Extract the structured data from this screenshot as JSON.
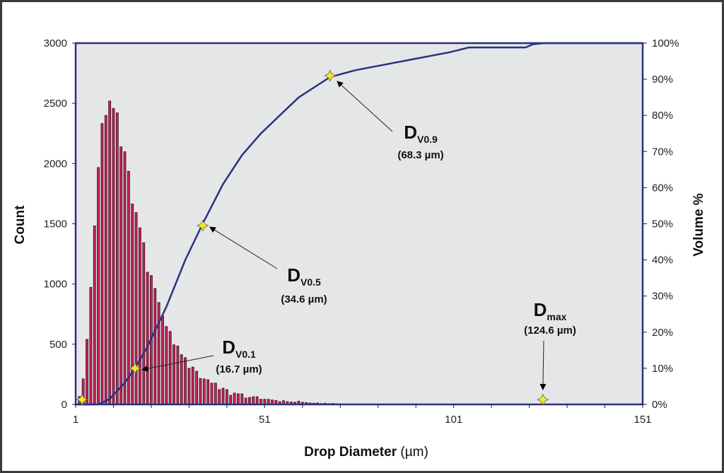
{
  "chart_data": {
    "type": "bar+line",
    "xlabel_bold": "Drop Diameter",
    "xlabel_unit": "(µm)",
    "ylabel": "Count",
    "y2label": "Volume %",
    "xlim": [
      1,
      151
    ],
    "ylim": [
      0,
      3000
    ],
    "y2lim": [
      0,
      100
    ],
    "x_tick_labels": [
      "1",
      "51",
      "101",
      "151"
    ],
    "x_tick_values": [
      1,
      51,
      101,
      151
    ],
    "x_minor_step": 10,
    "y_tick_labels": [
      "0",
      "500",
      "1000",
      "1500",
      "2000",
      "2500",
      "3000"
    ],
    "y_tick_values": [
      0,
      500,
      1000,
      1500,
      2000,
      2500,
      3000
    ],
    "y2_tick_labels": [
      "0%",
      "10%",
      "20%",
      "30%",
      "40%",
      "50%",
      "60%",
      "70%",
      "80%",
      "90%",
      "100%"
    ],
    "y2_tick_values": [
      0,
      10,
      20,
      30,
      40,
      50,
      60,
      70,
      80,
      90,
      100
    ],
    "histogram": {
      "name": "Count",
      "start_diameter": 2,
      "values": [
        66,
        212,
        540,
        972,
        1483,
        1967,
        2333,
        2400,
        2519,
        2458,
        2421,
        2139,
        2098,
        1936,
        1665,
        1593,
        1466,
        1343,
        1098,
        1070,
        963,
        846,
        735,
        647,
        606,
        495,
        485,
        413,
        388,
        300,
        310,
        275,
        216,
        212,
        205,
        177,
        177,
        123,
        135,
        123,
        76,
        94,
        88,
        88,
        53,
        58,
        64,
        64,
        43,
        43,
        43,
        37,
        33,
        23,
        31,
        23,
        20,
        18,
        27,
        18,
        15,
        12,
        10,
        12,
        8,
        10,
        6,
        8,
        5,
        5,
        4,
        3,
        3,
        2
      ]
    },
    "cumulative": {
      "name": "Volume %",
      "points": [
        [
          1,
          0
        ],
        [
          7,
          0
        ],
        [
          10,
          1.5
        ],
        [
          14,
          6
        ],
        [
          16.7,
          10
        ],
        [
          20,
          16
        ],
        [
          25,
          27
        ],
        [
          30,
          40
        ],
        [
          34.6,
          50
        ],
        [
          40,
          61
        ],
        [
          45,
          69
        ],
        [
          50,
          75
        ],
        [
          55,
          80
        ],
        [
          60,
          85
        ],
        [
          68.3,
          90.6
        ],
        [
          75,
          92.5
        ],
        [
          80,
          93.5
        ],
        [
          90,
          95.5
        ],
        [
          100,
          97.5
        ],
        [
          105,
          98.8
        ],
        [
          120,
          98.8
        ],
        [
          122,
          99.7
        ],
        [
          125,
          100
        ],
        [
          151,
          100
        ]
      ]
    },
    "annotations": [
      {
        "id": "dv01",
        "main": "D",
        "sub": "V0.1",
        "value": "(16.7 µm)",
        "x": 16.7,
        "pct": 10
      },
      {
        "id": "dv05",
        "main": "D",
        "sub": "V0.5",
        "value": "(34.6 µm)",
        "x": 34.6,
        "pct": 49.5
      },
      {
        "id": "dv09",
        "main": "D",
        "sub": "V0.9",
        "value": "(68.3 µm)",
        "x": 68.3,
        "pct": 91
      },
      {
        "id": "dmax",
        "main": "D",
        "sub": "max",
        "value": "(124.6 µm)",
        "x": 124.6,
        "count": 40
      }
    ],
    "extra_marker": {
      "x": 2.7,
      "count": 40
    },
    "colors": {
      "bar": "#c8245c",
      "bar_edge": "#3a0c1c",
      "line": "#2b3180",
      "plot_bg": "#e5e6e8",
      "marker": "#f4ea1a"
    }
  }
}
